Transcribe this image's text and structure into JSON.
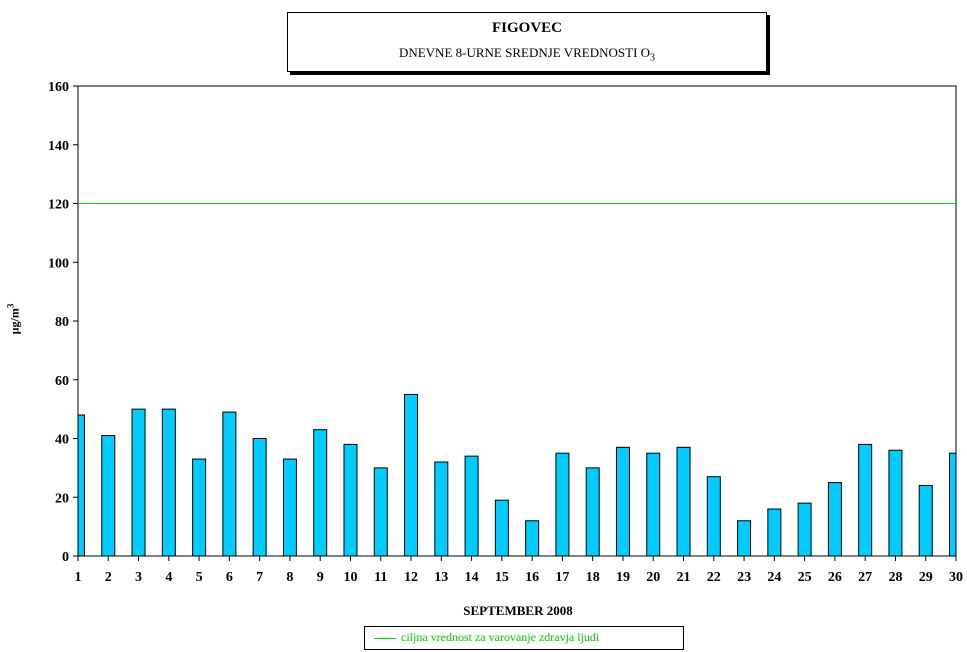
{
  "chart_data": {
    "type": "bar",
    "title": "FIGOVEC",
    "subtitle": "DNEVNE 8-URNE SREDNJE VREDNOSTI O",
    "subtitle_subscript": "3",
    "xlabel": "SEPTEMBER 2008",
    "ylabel": "µg/m",
    "ylabel_superscript": "3",
    "ylim": [
      0,
      160
    ],
    "yticks": [
      "0",
      "20",
      "40",
      "60",
      "80",
      "100",
      "120",
      "140",
      "160"
    ],
    "categories": [
      "1",
      "2",
      "3",
      "4",
      "5",
      "6",
      "7",
      "8",
      "9",
      "10",
      "11",
      "12",
      "13",
      "14",
      "15",
      "16",
      "17",
      "18",
      "19",
      "20",
      "21",
      "22",
      "23",
      "24",
      "25",
      "26",
      "27",
      "28",
      "29",
      "30"
    ],
    "values": [
      48,
      41,
      50,
      50,
      33,
      49,
      40,
      33,
      43,
      38,
      30,
      55,
      32,
      34,
      19,
      12,
      35,
      30,
      37,
      35,
      37,
      27,
      12,
      16,
      18,
      25,
      38,
      36,
      24,
      35
    ],
    "bar_color": "#00ccff",
    "reference_line": {
      "value": 120,
      "color": "#00dd00",
      "label": "ciljna vrednost za varovanje zdravja ljudi"
    },
    "legend_position": "bottom"
  }
}
